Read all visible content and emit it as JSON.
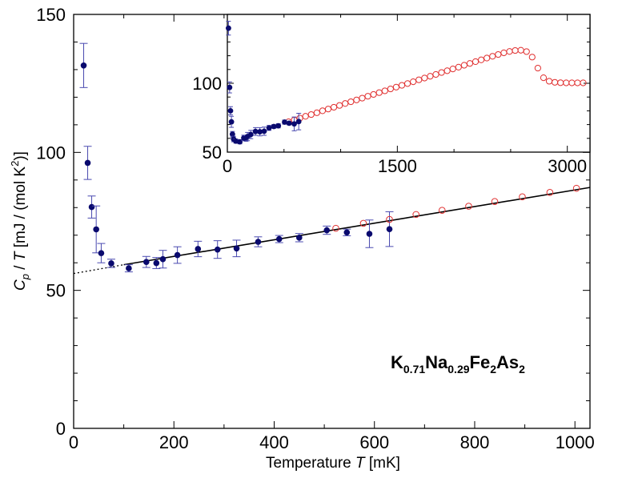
{
  "chart_data": {
    "type": "scatter",
    "title": "",
    "xlabel": {
      "prefix": "Temperature ",
      "var": "T",
      "unit": " [mK]"
    },
    "ylabel": {
      "c": "C",
      "sub": "p",
      "mid": " / ",
      "t": "T",
      "unit1": " [mJ / (mol K",
      "sup": "2",
      "unit2": ")]"
    },
    "compound": {
      "k": "K",
      "k_sub": "0.71",
      "na": "Na",
      "na_sub": "0.29",
      "fe": "Fe",
      "fe_sub": "2",
      "as": "As",
      "as_sub": "2"
    },
    "xlim": [
      0,
      1030
    ],
    "ylim": [
      0,
      150
    ],
    "x_ticks": [
      0,
      200,
      400,
      600,
      800,
      1000
    ],
    "y_ticks": [
      0,
      50,
      100,
      150
    ],
    "colors": {
      "filled": "#0a0a6e",
      "open": "#e03030",
      "fit": "#000000"
    },
    "series": [
      {
        "marker": "filled-circle",
        "x": [
          20,
          28,
          36,
          45,
          55,
          75,
          110,
          145,
          165,
          178,
          207,
          248,
          287,
          325,
          368,
          410,
          450,
          505,
          545,
          590,
          630
        ],
        "y": [
          131.5,
          96.2,
          80.2,
          72.1,
          63.5,
          59.8,
          58.0,
          60.3,
          59.9,
          61.3,
          62.8,
          65.0,
          64.8,
          65.2,
          67.6,
          68.6,
          69.1,
          71.8,
          71.0,
          70.5,
          72.2
        ],
        "yerr": [
          8,
          6,
          4,
          8.5,
          3.5,
          1.5,
          1.3,
          2,
          2,
          3.2,
          3,
          2.8,
          3.2,
          3,
          1.8,
          1.3,
          1.5,
          1.5,
          1.2,
          5,
          6.3
        ]
      },
      {
        "marker": "open-circle",
        "x": [
          523,
          578,
          630,
          683,
          735,
          788,
          840,
          895,
          950,
          1003
        ],
        "y": [
          72.5,
          74.3,
          75.7,
          77.5,
          79.0,
          80.5,
          82.2,
          83.9,
          85.5,
          87.0
        ]
      }
    ],
    "fit_line": {
      "x": [
        100,
        1030
      ],
      "y": [
        59.3,
        87.3
      ]
    },
    "extrapolation": {
      "x": [
        0,
        100
      ],
      "y": [
        56.1,
        59.3
      ]
    },
    "inset": {
      "xlim": [
        0,
        3200
      ],
      "ylim": [
        50,
        150
      ],
      "x_ticks": [
        0,
        1500,
        3000
      ],
      "y_ticks": [
        50,
        100
      ],
      "filled": {
        "x": [
          10,
          20,
          28,
          36,
          45,
          55,
          75,
          110,
          145,
          165,
          178,
          207,
          248,
          287,
          325,
          368,
          410,
          450,
          505,
          545,
          590,
          630
        ],
        "y": [
          140,
          97,
          80,
          72,
          63,
          59.5,
          58,
          57.5,
          60.3,
          59.9,
          61.3,
          62.8,
          65.0,
          64.8,
          65.2,
          67.6,
          68.6,
          69.1,
          71.8,
          71.0,
          70.5,
          72.2
        ],
        "yerr": [
          5,
          4,
          3,
          4,
          2,
          2,
          1.5,
          1.5,
          2,
          2,
          3,
          3,
          2.8,
          3,
          3,
          1.8,
          1.3,
          1.5,
          1.5,
          1.2,
          5,
          6
        ]
      },
      "open": {
        "x": [
          540,
          590,
          640,
          690,
          740,
          790,
          840,
          890,
          940,
          990,
          1040,
          1090,
          1140,
          1190,
          1240,
          1290,
          1340,
          1390,
          1440,
          1490,
          1540,
          1590,
          1640,
          1690,
          1740,
          1790,
          1840,
          1890,
          1940,
          1990,
          2040,
          2090,
          2140,
          2190,
          2240,
          2290,
          2340,
          2390,
          2440,
          2490,
          2540,
          2590,
          2640,
          2690,
          2740,
          2790,
          2840,
          2890,
          2940,
          2990,
          3040,
          3090,
          3140
        ],
        "y": [
          72.0,
          73.3,
          74.7,
          76.0,
          77.3,
          78.6,
          80.0,
          81.3,
          82.6,
          83.9,
          85.3,
          86.6,
          87.9,
          89.2,
          90.6,
          91.9,
          93.2,
          94.5,
          95.9,
          97.2,
          98.5,
          99.8,
          101.1,
          102.5,
          103.8,
          105.1,
          106.4,
          107.8,
          109.1,
          110.4,
          111.7,
          113.1,
          114.4,
          115.7,
          117.0,
          118.3,
          119.6,
          120.9,
          122.1,
          123.1,
          123.8,
          124.0,
          123.0,
          119.0,
          111.0,
          104.0,
          101.5,
          100.7,
          100.4,
          100.3,
          100.3,
          100.3,
          100.3
        ]
      }
    }
  }
}
